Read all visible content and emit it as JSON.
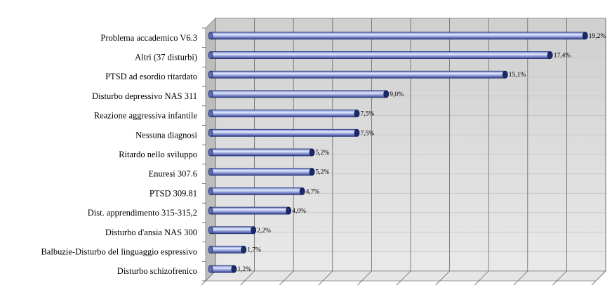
{
  "chart_data": {
    "type": "bar",
    "orientation": "horizontal",
    "categories": [
      "Problema accademico V6.3",
      "Altri (37 disturbi)",
      "PTSD ad esordio ritardato",
      "Disturbo depressivo NAS 311",
      "Reazione aggressiva infantile",
      "Nessuna diagnosi",
      "Ritardo nello sviluppo",
      "Enuresi 307.6",
      "PTSD 309.81",
      "Dist. apprendimento 315-315,2",
      "Disturbo d'ansia NAS 300",
      "Balbuzie-Disturbo del linguaggio espressivo",
      "Disturbo schizofrenico"
    ],
    "values": [
      19.2,
      17.4,
      15.1,
      9.0,
      7.5,
      7.5,
      5.2,
      5.2,
      4.7,
      4.0,
      2.2,
      1.7,
      1.2
    ],
    "data_labels": [
      "19,2%",
      "17,4%",
      "15,1%",
      "9,0%",
      "7,5%",
      "7,5%",
      "5,2%",
      "5,2%",
      "4,7%",
      "4,0%",
      "2,2%",
      "1,7%",
      "1,2%"
    ],
    "xlim": [
      0,
      20
    ],
    "grid": true,
    "style": "3d",
    "colors": {
      "bar_light": "#c8d0f0",
      "bar_dark": "#3a4a9a",
      "bar_cap": "#1a2a6a",
      "back_wall": "#d6d6d6",
      "floor": "#e8e8e8",
      "gridline": "#666666"
    }
  }
}
